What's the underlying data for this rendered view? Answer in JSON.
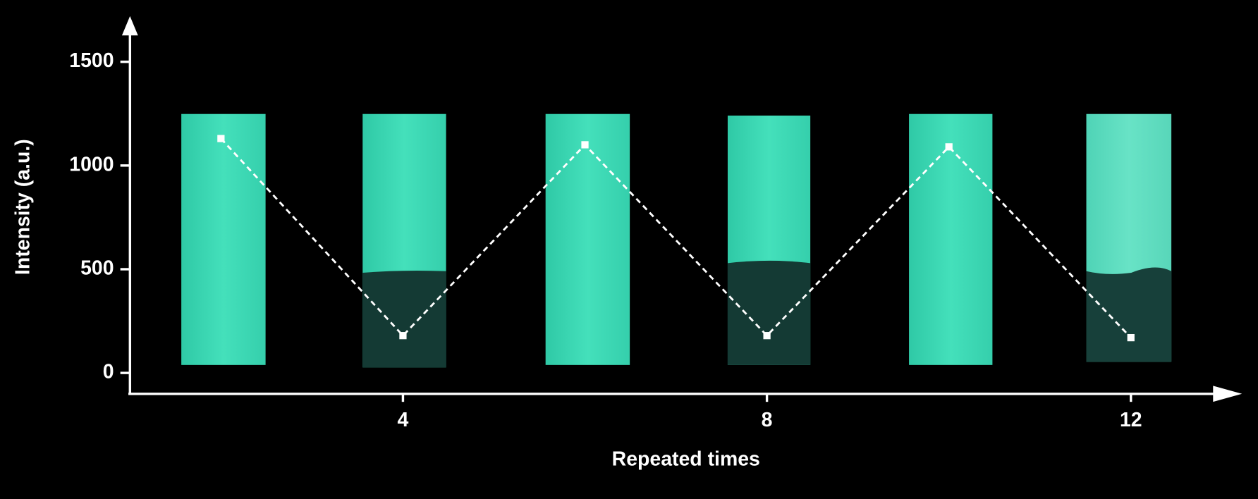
{
  "chart_data": {
    "type": "line",
    "x_label": "Repeated times",
    "y_label": "Intensity (a.u.)",
    "x": [
      2,
      4,
      6,
      8,
      10,
      12
    ],
    "values": [
      1130,
      180,
      1100,
      180,
      1090,
      170
    ],
    "color": "#ffffff",
    "xlim": [
      1,
      13
    ],
    "xticks": [
      4,
      8,
      12
    ],
    "ylim": [
      -100,
      1700
    ],
    "yticks": [
      0,
      500,
      1000,
      1500
    ]
  }
}
